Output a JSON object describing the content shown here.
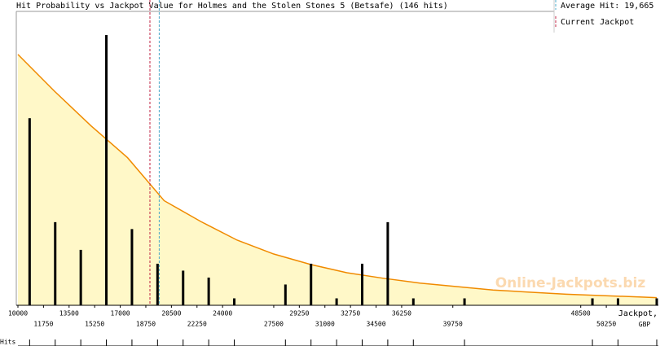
{
  "chart_data": {
    "type": "bar",
    "title": "Hit Probability vs Jackpot Value for Holmes and the Stolen Stones 5 (Betsafe) (146 hits)",
    "xlabel": "Jackpot, GBP",
    "rug_label": "Hits",
    "watermark": "Online-Jackpots.biz",
    "xlim": [
      10000,
      53700
    ],
    "ylim": [
      0,
      43
    ],
    "xticks": [
      10000,
      11750,
      13500,
      15250,
      17000,
      18750,
      20500,
      22250,
      24000,
      27500,
      29250,
      31000,
      32750,
      34500,
      36250,
      39750,
      48500,
      50250
    ],
    "bars": {
      "name": "Hits",
      "color": "#000000",
      "x": [
        10800,
        12550,
        14300,
        16050,
        17800,
        19550,
        21300,
        23050,
        24800,
        28300,
        30050,
        31800,
        33550,
        35300,
        37050,
        40550,
        49300,
        51050,
        53700
      ],
      "values": [
        27,
        12,
        8,
        39,
        11,
        6,
        5,
        4,
        1,
        3,
        6,
        1,
        6,
        12,
        1,
        1,
        1,
        1,
        1
      ]
    },
    "curve": {
      "color": "#f08a00",
      "fill": "#fff8c8",
      "x": [
        10000,
        12500,
        15000,
        17500,
        20000,
        22500,
        25000,
        27500,
        30000,
        32500,
        35000,
        37500,
        40000,
        42500,
        45000,
        47500,
        50000,
        52500,
        53700
      ],
      "values": [
        36.2,
        30.9,
        25.9,
        21.3,
        15.1,
        12.1,
        9.4,
        7.4,
        5.9,
        4.7,
        3.9,
        3.2,
        2.7,
        2.2,
        1.9,
        1.6,
        1.4,
        1.2,
        1.1
      ]
    },
    "average_hit": {
      "value": 19665,
      "label": "Average Hit: 19,665",
      "color": "#4aa8c8"
    },
    "current_jackpot": {
      "value": 19030,
      "label": "Current Jackpot",
      "color": "#c02040"
    }
  }
}
